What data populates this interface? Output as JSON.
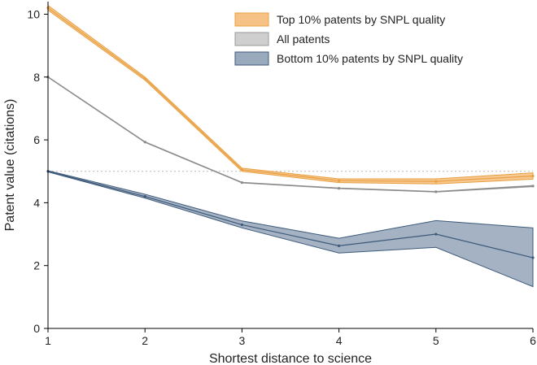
{
  "chart_data": {
    "type": "line",
    "title": "",
    "xlabel": "Shortest distance to science",
    "ylabel": "Patent value (citations)",
    "x": [
      1,
      2,
      3,
      4,
      5,
      6
    ],
    "xlim": [
      1,
      6
    ],
    "ylim": [
      0,
      10.4
    ],
    "xticks": [
      "1",
      "2",
      "3",
      "4",
      "5",
      "6"
    ],
    "yticks": [
      "0",
      "2",
      "4",
      "6",
      "8",
      "10"
    ],
    "reference_line_y": 5.0,
    "grid": false,
    "legend_position": "top-right",
    "series": [
      {
        "name": "Top 10% patents by SNPL quality",
        "values": [
          10.2,
          7.95,
          5.05,
          4.7,
          4.68,
          4.85
        ],
        "lower": [
          10.13,
          7.9,
          5.0,
          4.64,
          4.6,
          4.75
        ],
        "upper": [
          10.28,
          8.0,
          5.1,
          4.76,
          4.76,
          4.95
        ],
        "line_color": "#e8a040",
        "fill_color": "#f6c285",
        "edge_color": "#e8a040"
      },
      {
        "name": "All patents",
        "values": [
          8.0,
          5.93,
          4.64,
          4.46,
          4.35,
          4.53
        ],
        "lower": [
          7.99,
          5.92,
          4.63,
          4.45,
          4.34,
          4.51
        ],
        "upper": [
          8.01,
          5.94,
          4.65,
          4.47,
          4.36,
          4.55
        ],
        "line_color": "#8a8a8a",
        "fill_color": "#cfcfcf",
        "edge_color": "#9a9a9a"
      },
      {
        "name": "Bottom 10% patents by SNPL quality",
        "values": [
          5.0,
          4.2,
          3.3,
          2.63,
          3.0,
          2.25
        ],
        "lower": [
          4.98,
          4.15,
          3.2,
          2.4,
          2.58,
          1.33
        ],
        "upper": [
          5.02,
          4.27,
          3.42,
          2.87,
          3.43,
          3.2
        ],
        "line_color": "#3d5a7a",
        "fill_color": "#9aaabd",
        "edge_color": "#3d5a7a"
      }
    ]
  }
}
